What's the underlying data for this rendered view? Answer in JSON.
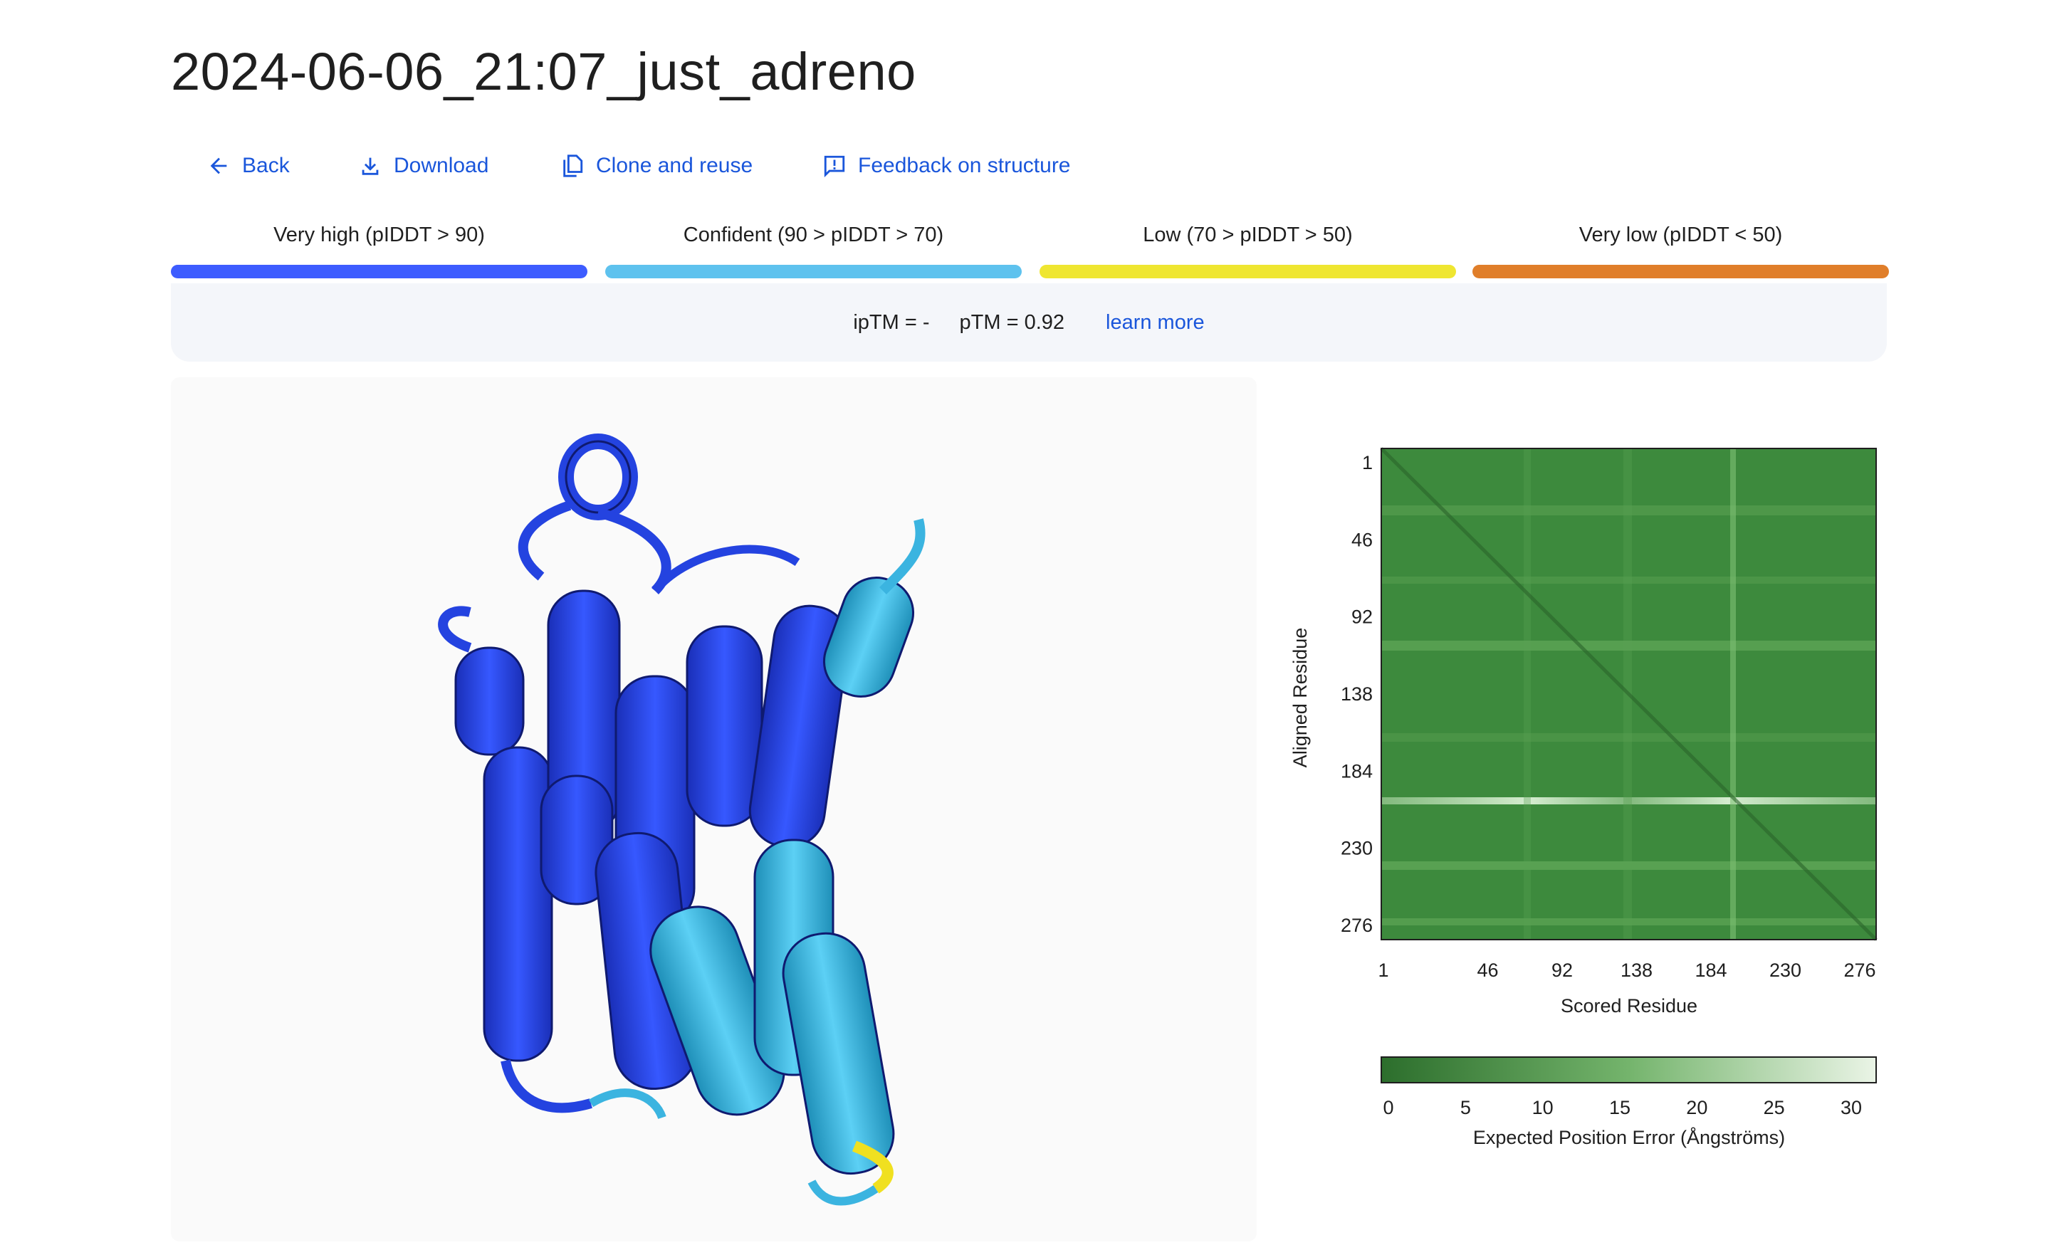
{
  "page": {
    "title": "2024-06-06_21:07_just_adreno"
  },
  "toolbar": {
    "back": {
      "label": "Back",
      "icon": "arrow-left-icon"
    },
    "download": {
      "label": "Download",
      "icon": "download-icon"
    },
    "clone": {
      "label": "Clone and reuse",
      "icon": "copy-icon"
    },
    "feedback": {
      "label": "Feedback on structure",
      "icon": "feedback-icon"
    }
  },
  "plddt_legend": [
    {
      "label": "Very high (pIDDT > 90)",
      "color": "#3d5cff"
    },
    {
      "label": "Confident (90 > pIDDT > 70)",
      "color": "#5ec2ee"
    },
    {
      "label": "Low (70 > pIDDT > 50)",
      "color": "#efe631"
    },
    {
      "label": "Very low (pIDDT < 50)",
      "color": "#e07e2a"
    }
  ],
  "scores": {
    "iptm": "ipTM = -",
    "ptm": "pTM = 0.92",
    "learn_more": "learn more"
  },
  "structure_viewer": {
    "colors": {
      "very_high": "#2443e0",
      "confident": "#3bb4e0",
      "low": "#f0e020"
    }
  },
  "pae_plot": {
    "y_axis_label": "Aligned Residue",
    "x_axis_label": "Scored Residue",
    "y_ticks": [
      "1",
      "46",
      "92",
      "138",
      "184",
      "230",
      "276"
    ],
    "x_ticks": [
      "1",
      "46",
      "92",
      "138",
      "184",
      "230",
      "276"
    ],
    "colorbar_ticks": [
      "0",
      "5",
      "10",
      "15",
      "20",
      "25",
      "30"
    ],
    "colorbar_label": "Expected Position Error (Ångströms)",
    "colorbar_colors": [
      "#2c6e2c",
      "#eaf4e6"
    ]
  },
  "chart_data": {
    "type": "heatmap",
    "title": "",
    "xlabel": "Scored Residue",
    "ylabel": "Aligned Residue",
    "x_ticks": [
      1,
      46,
      92,
      138,
      184,
      230,
      276
    ],
    "y_ticks": [
      1,
      46,
      92,
      138,
      184,
      230,
      276
    ],
    "xlim": [
      1,
      276
    ],
    "ylim": [
      1,
      276
    ],
    "colorbar": {
      "min": 0,
      "max": 30,
      "label": "Expected Position Error (Ångströms)"
    },
    "notes": "Mostly low error (dark green) with lighter bands near residue ~198 and ~230."
  }
}
